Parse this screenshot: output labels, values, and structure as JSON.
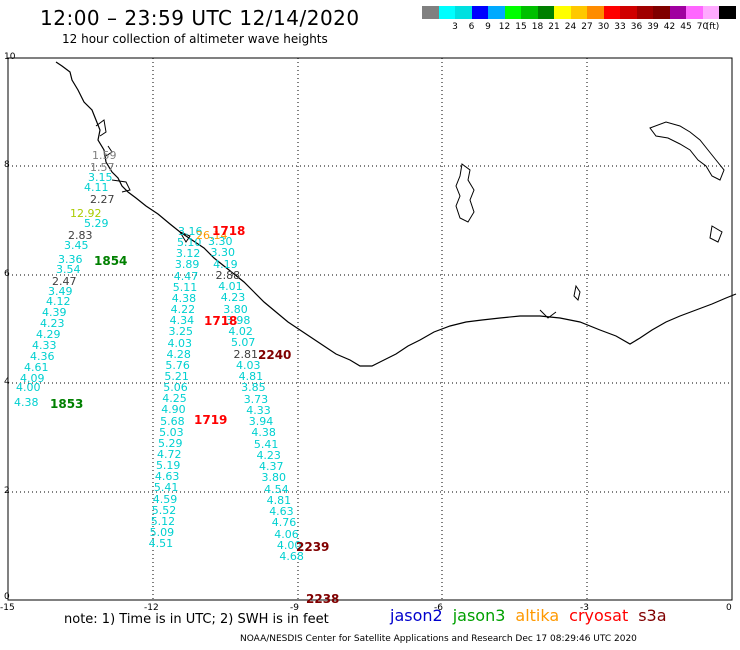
{
  "title": "12:00 – 23:59 UTC 12/14/2020",
  "subtitle": "12 hour collection of altimeter wave heights",
  "colorbar": {
    "colors": [
      "#808080",
      "#00ffff",
      "#00e0e0",
      "#0000ff",
      "#00aaff",
      "#00ff00",
      "#00c000",
      "#008000",
      "#ffff00",
      "#ffc800",
      "#ff8c00",
      "#ff0000",
      "#d00000",
      "#a00000",
      "#800000",
      "#a000a0",
      "#ff66ff",
      "#ffaaff",
      "#000000"
    ],
    "labels": [
      "3",
      "6",
      "9",
      "12",
      "15",
      "18",
      "21",
      "24",
      "27",
      "30",
      "33",
      "36",
      "39",
      "42",
      "45",
      "70"
    ],
    "unit": "(ft)"
  },
  "axes": {
    "y_ticks": [
      "10",
      "8",
      "6",
      "4",
      "2",
      "0"
    ],
    "x_ticks": [
      "-15",
      "-12",
      "-9",
      "-6",
      "-3",
      "0"
    ]
  },
  "note": "note: 1) Time is in UTC; 2) SWH is in feet",
  "legend": [
    {
      "name": "jason2",
      "color": "#0000cc"
    },
    {
      "name": "jason3",
      "color": "#00a000"
    },
    {
      "name": "altika",
      "color": "#ff9900"
    },
    {
      "name": "cryosat",
      "color": "#ff0000"
    },
    {
      "name": "s3a",
      "color": "#800000"
    }
  ],
  "footer": "NOAA/NESDIS Center for Satellite Applications and Research    Dec 17 08:29:46 UTC 2020",
  "track1": {
    "color": "#00d0d0",
    "values": [
      "1.59",
      "1.57",
      "3.15",
      "4.11",
      "2.27",
      "12.92",
      "5.29",
      "2.83",
      "3.45",
      "3.36",
      "3.54",
      "2.47",
      "3.49",
      "4.12",
      "4.39",
      "4.23",
      "4.29",
      "4.33",
      "4.36",
      "4.61",
      "4.09",
      "4.00",
      "4.38"
    ],
    "times": [
      {
        "text": "1854",
        "color": "#008000"
      },
      {
        "text": "1853",
        "color": "#008000"
      }
    ]
  },
  "track2": {
    "values": [
      "3.16",
      "3.30",
      "5.10",
      "3.30",
      "3.12",
      "4.19",
      "3.89",
      "2.88",
      "4.47",
      "4.01",
      "5.11",
      "4.23",
      "4.38",
      "3.80",
      "4.22",
      "3.98",
      "4.34",
      "4.02",
      "3.25",
      "5.07",
      "4.03",
      "2.81",
      "4.28",
      "4.03",
      "5.76",
      "4.81",
      "5.21",
      "3.85",
      "5.06",
      "3.73",
      "4.25",
      "4.33",
      "4.90",
      "3.94",
      "5.68",
      "4.38",
      "5.03",
      "5.41",
      "5.29",
      "4.23",
      "4.72",
      "4.37",
      "5.19",
      "3.80",
      "4.63",
      "4.54",
      "5.41",
      "4.81",
      "4.59",
      "4.63",
      "5.52",
      "4.76",
      "5.12",
      "4.06",
      "5.09",
      "4.00",
      "4.51",
      "4.68"
    ],
    "special": "26.14",
    "times": [
      {
        "text": "1718",
        "color": "#ff0000"
      },
      {
        "text": "1718",
        "color": "#ff0000"
      },
      {
        "text": "1719",
        "color": "#ff0000"
      },
      {
        "text": "2240",
        "color": "#800000"
      },
      {
        "text": "2239",
        "color": "#800000"
      },
      {
        "text": "2238",
        "color": "#800000"
      }
    ]
  }
}
